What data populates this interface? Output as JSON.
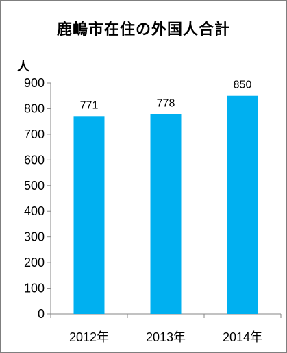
{
  "chart_data": {
    "type": "bar",
    "title": "鹿嶋市在住の外国人合計",
    "ylabel": "人",
    "xlabel": "",
    "categories": [
      "2012年",
      "2013年",
      "2014年"
    ],
    "values": [
      771,
      778,
      850
    ],
    "data_labels": [
      "771",
      "778",
      "850"
    ],
    "ylim": [
      0,
      900
    ],
    "yticks": [
      "0",
      "100",
      "200",
      "300",
      "400",
      "500",
      "600",
      "700",
      "800",
      "900"
    ],
    "grid": false,
    "legend": "none",
    "bar_color": "#00b0f0"
  }
}
